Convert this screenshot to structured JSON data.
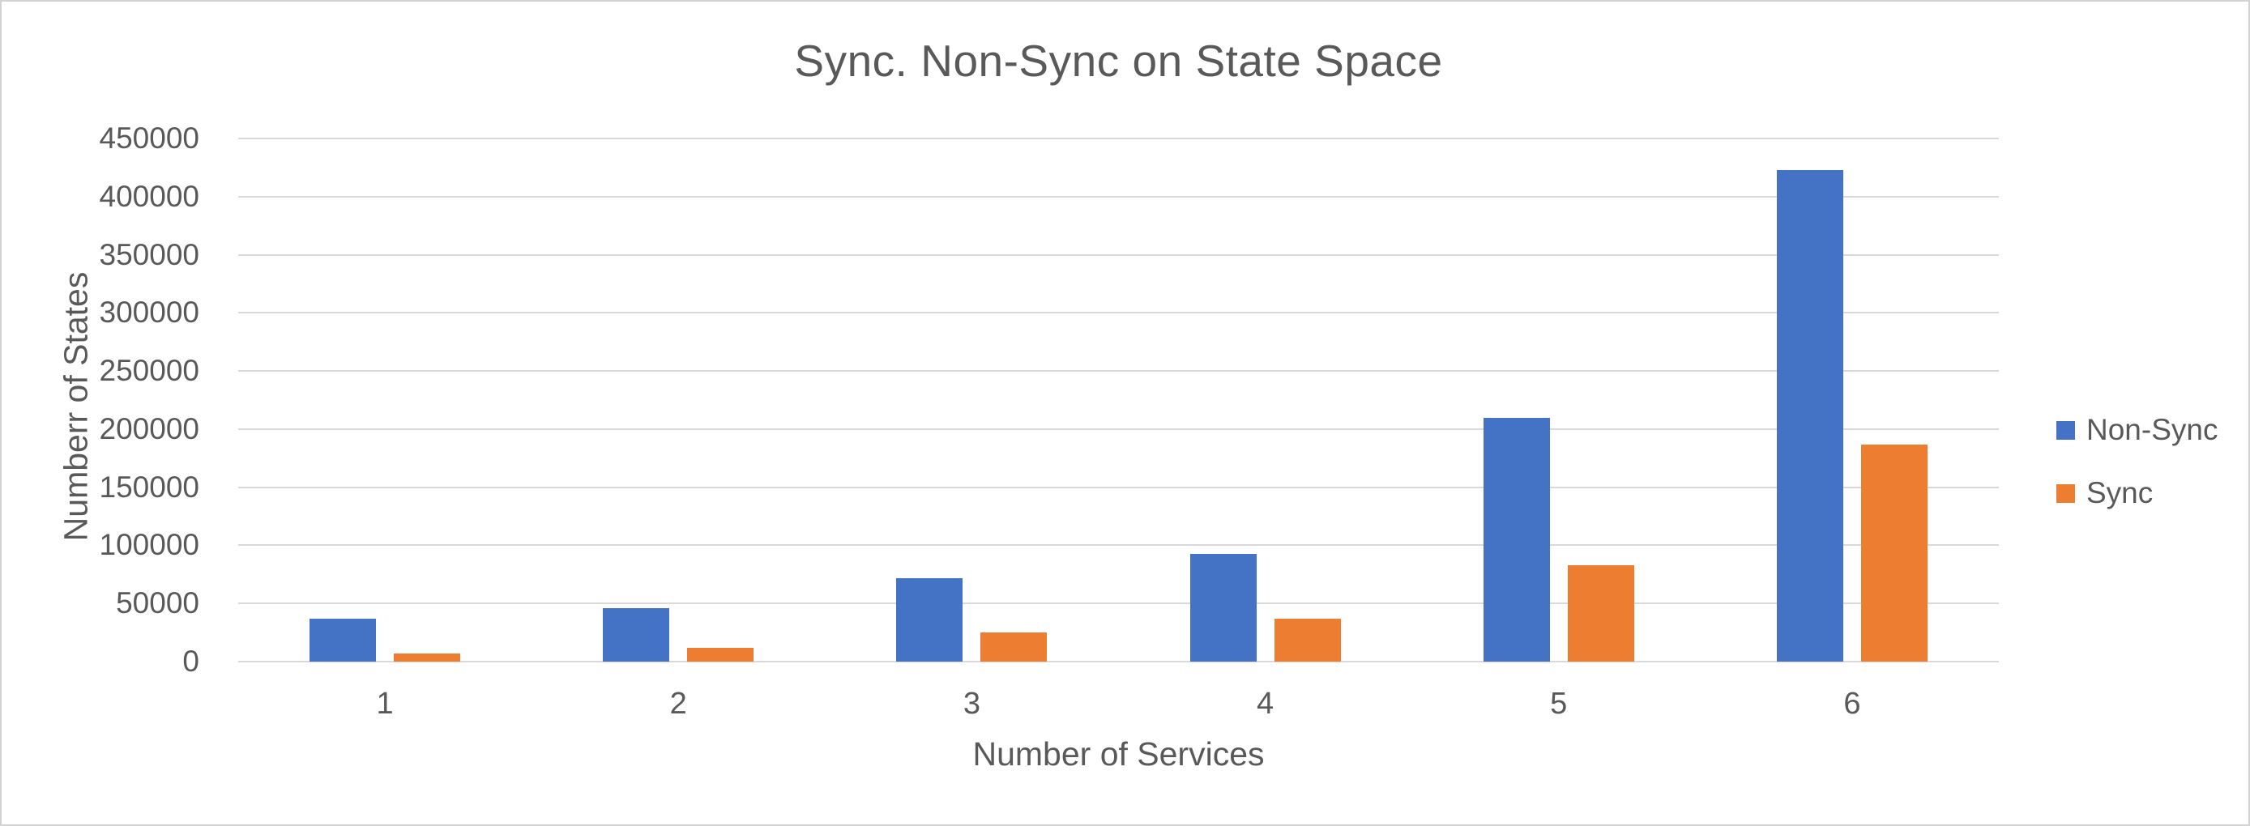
{
  "chart_data": {
    "type": "bar",
    "title": "Sync. Non-Sync on State Space",
    "xlabel": "Number of Services",
    "ylabel": "Numberr of States",
    "categories": [
      "1",
      "2",
      "3",
      "4",
      "5",
      "6"
    ],
    "series": [
      {
        "name": "Non-Sync",
        "color": "#4472C4",
        "values": [
          37000,
          46000,
          72000,
          93000,
          210000,
          423000
        ]
      },
      {
        "name": "Sync",
        "color": "#ED7D31",
        "values": [
          7000,
          12000,
          25000,
          37000,
          83000,
          187000
        ]
      }
    ],
    "ylim": [
      0,
      450000
    ],
    "ytick_step": 50000,
    "ytick_labels": [
      "0",
      "50000",
      "100000",
      "150000",
      "200000",
      "250000",
      "300000",
      "350000",
      "400000",
      "450000"
    ],
    "grid": "horizontal-only",
    "legend_position": "right"
  },
  "colors": {
    "text": "#595959",
    "gridline": "#D9D9D9",
    "bar_blue": "#4472C4",
    "bar_orange": "#ED7D31",
    "frame_border": "#D2D2D2",
    "background": "#FFFFFF"
  }
}
